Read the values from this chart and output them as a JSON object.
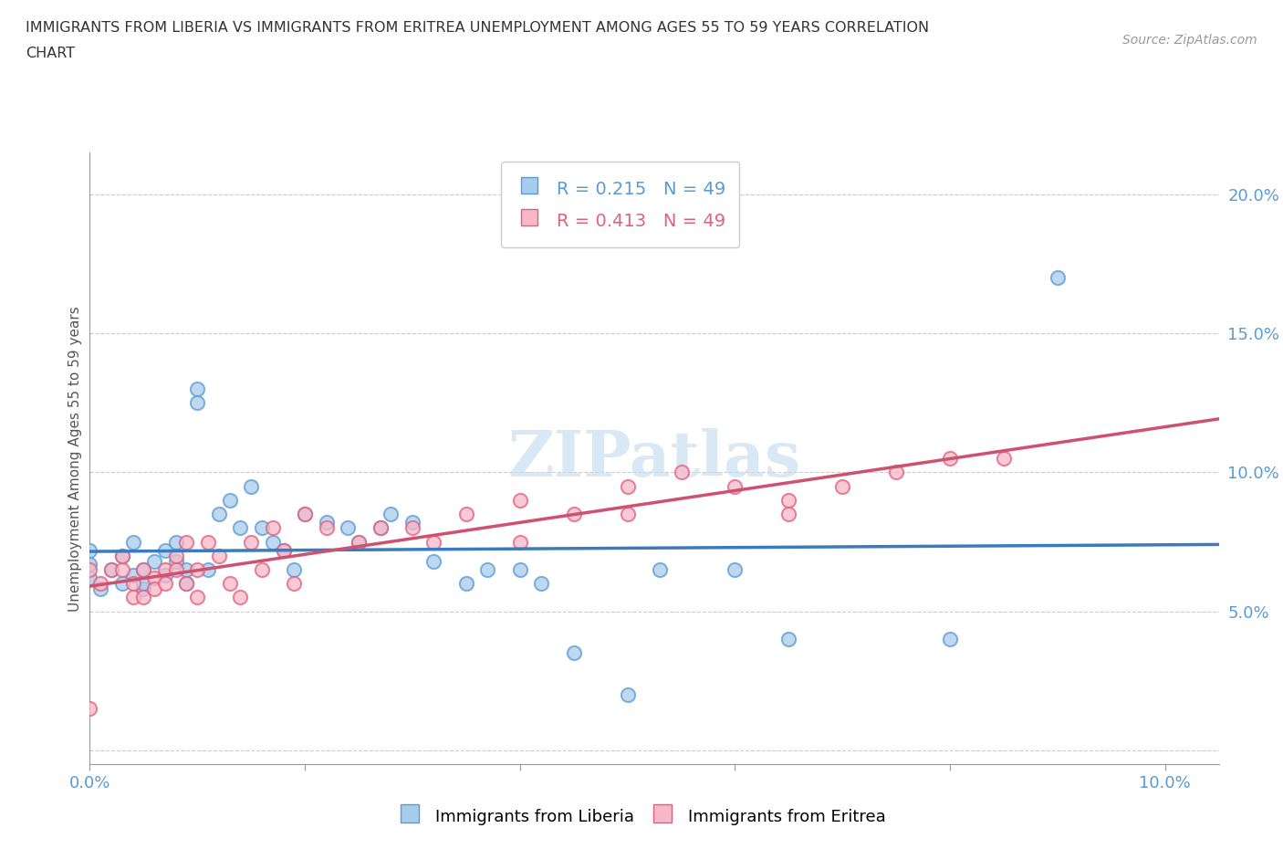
{
  "title_line1": "IMMIGRANTS FROM LIBERIA VS IMMIGRANTS FROM ERITREA UNEMPLOYMENT AMONG AGES 55 TO 59 YEARS CORRELATION",
  "title_line2": "CHART",
  "source": "Source: ZipAtlas.com",
  "ylabel": "Unemployment Among Ages 55 to 59 years",
  "xlim": [
    0.0,
    0.105
  ],
  "ylim": [
    -0.005,
    0.215
  ],
  "xticks": [
    0.0,
    0.02,
    0.04,
    0.06,
    0.08,
    0.1
  ],
  "yticks": [
    0.0,
    0.05,
    0.1,
    0.15,
    0.2
  ],
  "liberia_R": 0.215,
  "eritrea_R": 0.413,
  "N": 49,
  "liberia_color": "#a8ccec",
  "eritrea_color": "#f7b8c8",
  "liberia_edge_color": "#5b9bd5",
  "eritrea_edge_color": "#e06080",
  "liberia_line_color": "#3a7bbf",
  "eritrea_line_color": "#d05070",
  "tick_color": "#5b9bd5",
  "watermark_color": "#c8dff0",
  "grid_color": "#cccccc",
  "liberia_x": [
    0.0,
    0.0,
    0.0,
    0.001,
    0.002,
    0.003,
    0.003,
    0.004,
    0.004,
    0.005,
    0.005,
    0.005,
    0.006,
    0.007,
    0.007,
    0.008,
    0.008,
    0.009,
    0.009,
    0.01,
    0.01,
    0.011,
    0.012,
    0.013,
    0.014,
    0.015,
    0.016,
    0.017,
    0.018,
    0.019,
    0.02,
    0.022,
    0.024,
    0.025,
    0.027,
    0.028,
    0.03,
    0.032,
    0.035,
    0.037,
    0.04,
    0.042,
    0.045,
    0.05,
    0.053,
    0.06,
    0.065,
    0.08,
    0.09
  ],
  "liberia_y": [
    0.062,
    0.067,
    0.072,
    0.058,
    0.065,
    0.06,
    0.07,
    0.063,
    0.075,
    0.058,
    0.065,
    0.06,
    0.068,
    0.072,
    0.063,
    0.075,
    0.068,
    0.06,
    0.065,
    0.13,
    0.125,
    0.065,
    0.085,
    0.09,
    0.08,
    0.095,
    0.08,
    0.075,
    0.072,
    0.065,
    0.085,
    0.082,
    0.08,
    0.075,
    0.08,
    0.085,
    0.082,
    0.068,
    0.06,
    0.065,
    0.065,
    0.06,
    0.035,
    0.02,
    0.065,
    0.065,
    0.04,
    0.04,
    0.17
  ],
  "eritrea_x": [
    0.0,
    0.0,
    0.001,
    0.002,
    0.003,
    0.003,
    0.004,
    0.004,
    0.005,
    0.005,
    0.006,
    0.006,
    0.007,
    0.007,
    0.008,
    0.008,
    0.009,
    0.009,
    0.01,
    0.01,
    0.011,
    0.012,
    0.013,
    0.014,
    0.015,
    0.016,
    0.017,
    0.018,
    0.019,
    0.02,
    0.022,
    0.025,
    0.027,
    0.03,
    0.032,
    0.035,
    0.04,
    0.04,
    0.045,
    0.05,
    0.05,
    0.055,
    0.06,
    0.065,
    0.065,
    0.07,
    0.075,
    0.08,
    0.085
  ],
  "eritrea_y": [
    0.065,
    0.015,
    0.06,
    0.065,
    0.065,
    0.07,
    0.06,
    0.055,
    0.055,
    0.065,
    0.062,
    0.058,
    0.065,
    0.06,
    0.07,
    0.065,
    0.06,
    0.075,
    0.055,
    0.065,
    0.075,
    0.07,
    0.06,
    0.055,
    0.075,
    0.065,
    0.08,
    0.072,
    0.06,
    0.085,
    0.08,
    0.075,
    0.08,
    0.08,
    0.075,
    0.085,
    0.09,
    0.075,
    0.085,
    0.095,
    0.085,
    0.1,
    0.095,
    0.09,
    0.085,
    0.095,
    0.1,
    0.105,
    0.105
  ]
}
